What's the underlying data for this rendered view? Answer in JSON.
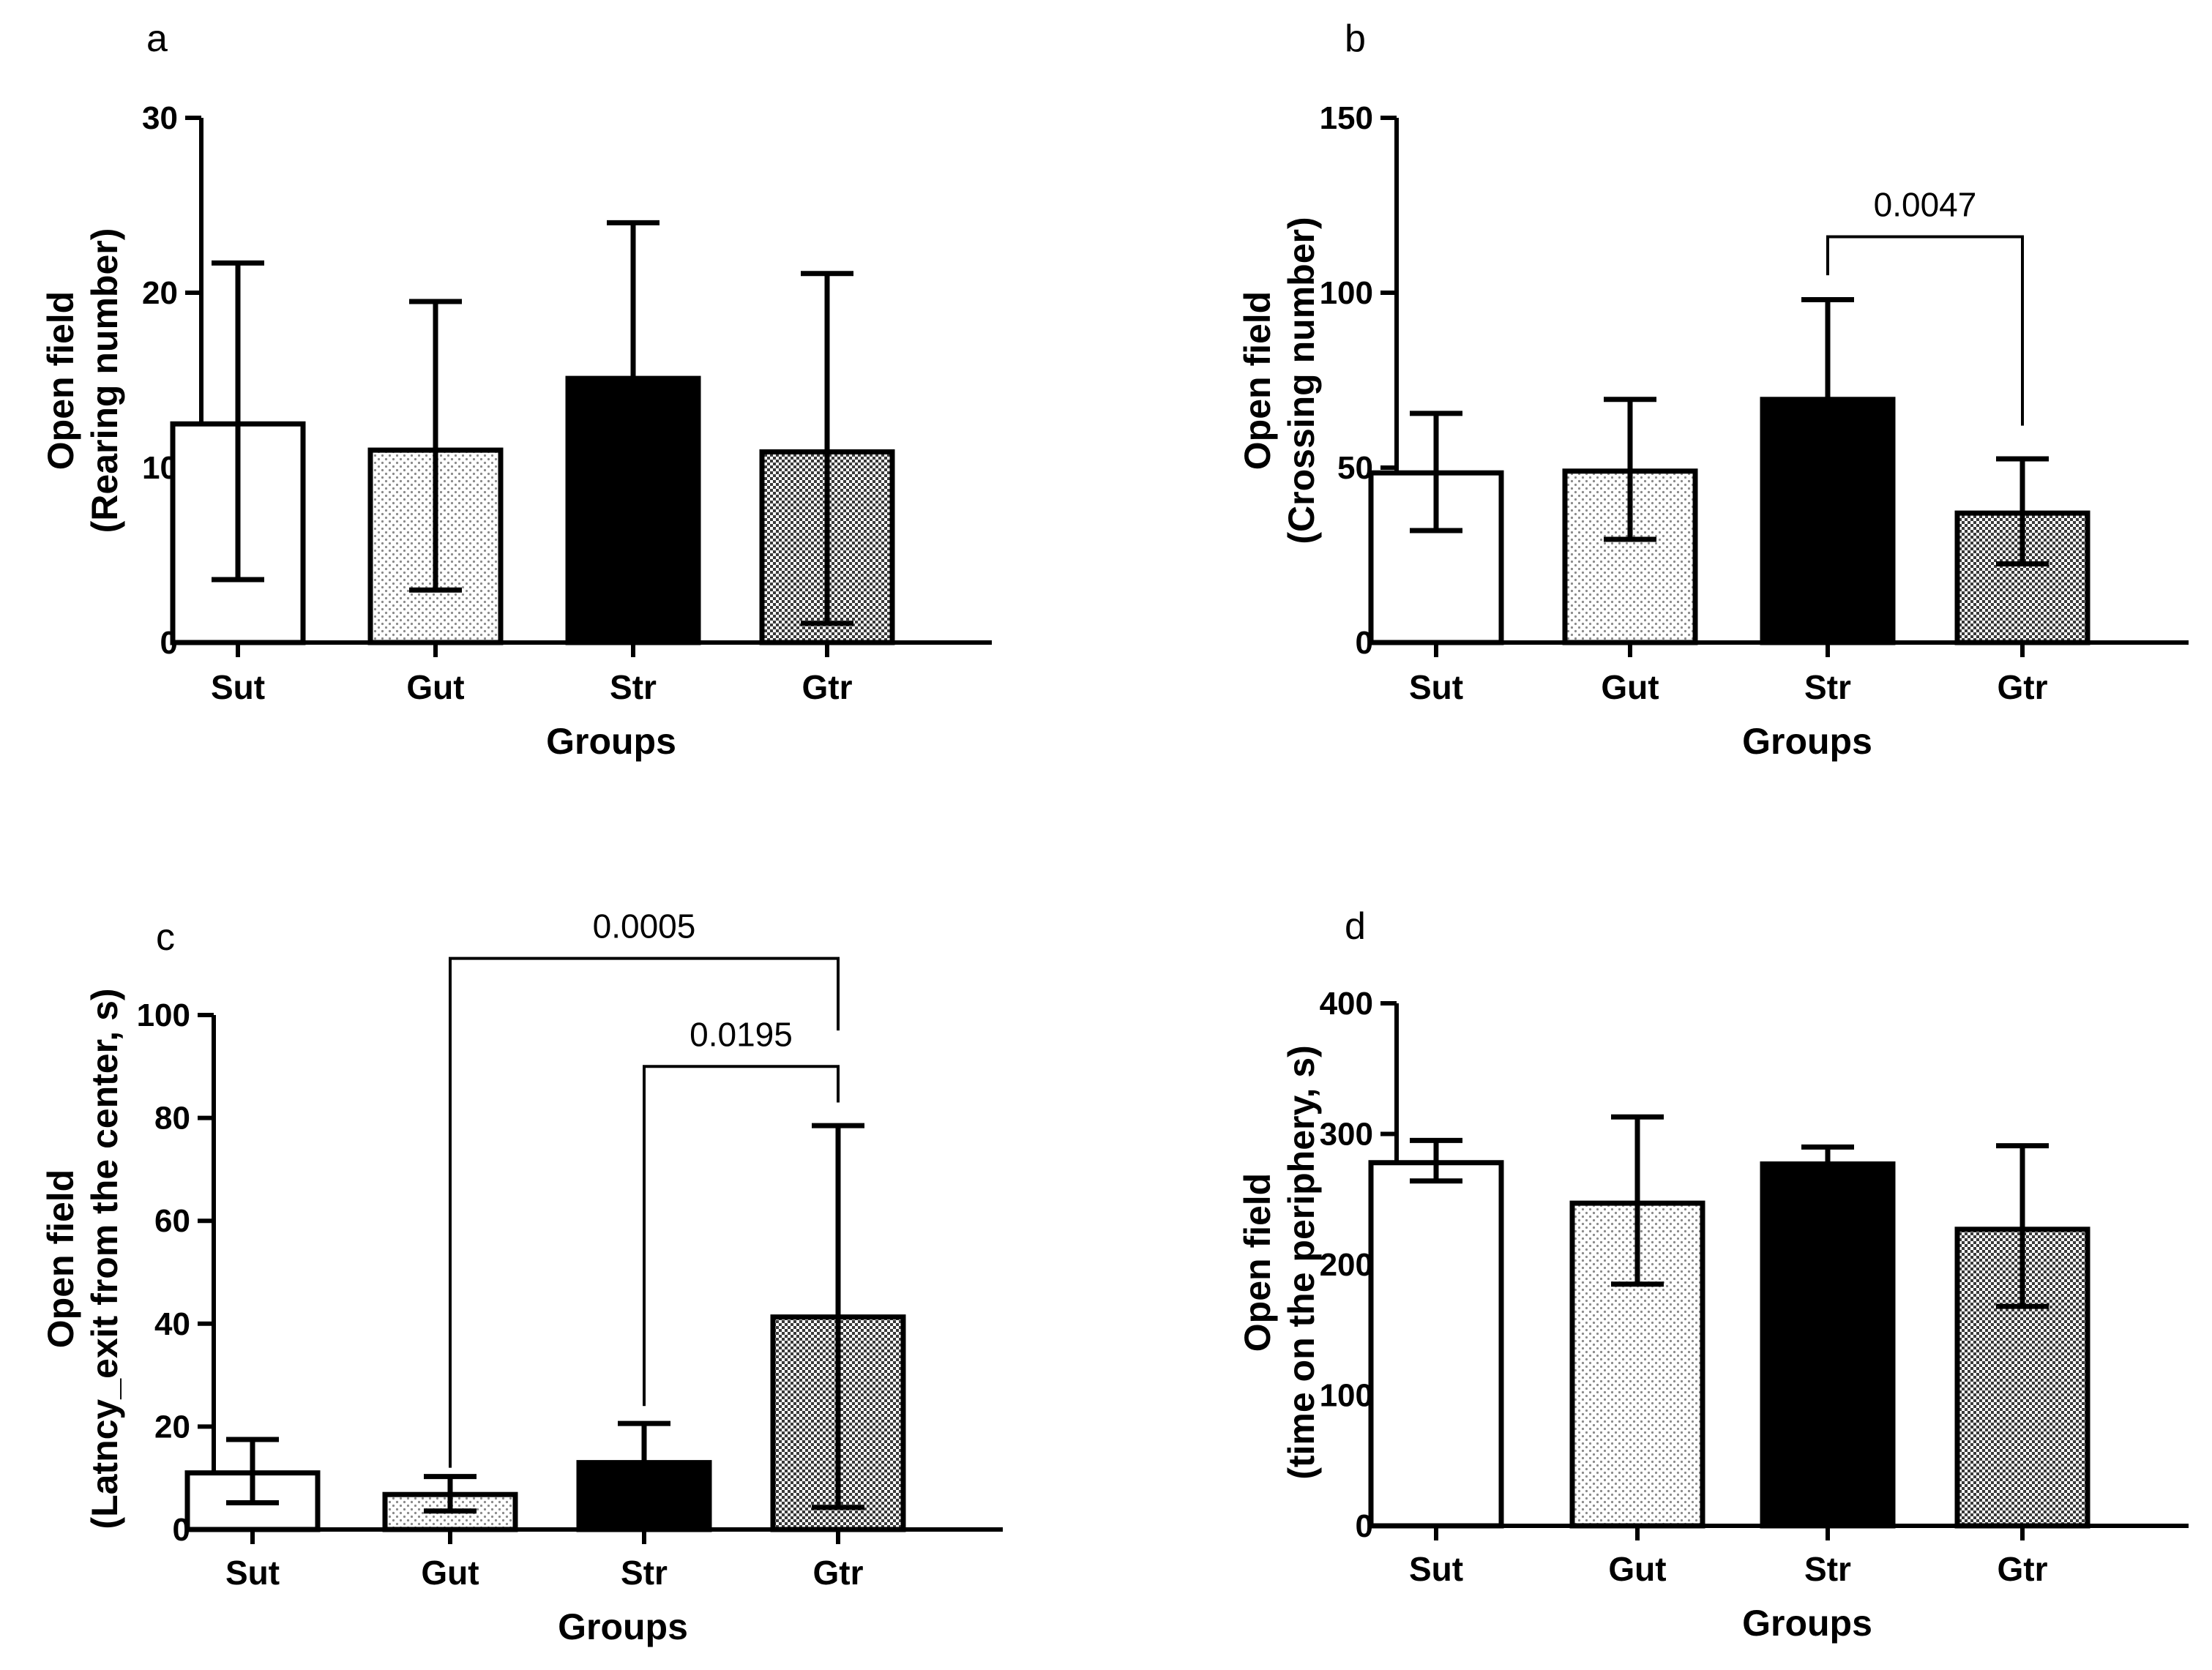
{
  "chart_data": [
    {
      "panel": "a",
      "type": "bar",
      "categories": [
        "Sut",
        "Gut",
        "Str",
        "Gtr"
      ],
      "values": [
        12.5,
        11.0,
        15.1,
        10.9
      ],
      "error_upper": [
        21.7,
        19.5,
        24.0,
        21.1
      ],
      "error_lower": [
        3.6,
        3.0,
        15.1,
        1.1
      ],
      "patterns": [
        "white",
        "dots",
        "black",
        "check"
      ],
      "yticks": [
        0,
        10,
        20,
        30
      ],
      "ylim": [
        0,
        30
      ],
      "xlabel": "Groups",
      "ylabel_lines": [
        "Open field",
        "(Rearing number)"
      ],
      "significance": []
    },
    {
      "panel": "b",
      "type": "bar",
      "categories": [
        "Sut",
        "Gut",
        "Str",
        "Gtr"
      ],
      "values": [
        48.5,
        49.0,
        69.5,
        37.0
      ],
      "error_upper": [
        65.5,
        69.5,
        98.0,
        52.5
      ],
      "error_lower": [
        32.0,
        29.5,
        69.5,
        22.5
      ],
      "patterns": [
        "white",
        "dots",
        "black",
        "check"
      ],
      "yticks": [
        0,
        50,
        100,
        150
      ],
      "ylim": [
        0,
        150
      ],
      "xlabel": "Groups",
      "ylabel_lines": [
        "Open field",
        "(Crossing number)"
      ],
      "significance": [
        {
          "from": 2,
          "to": 3,
          "label": "0.0047",
          "bracket_y": 116,
          "left_end": 105,
          "right_end": 62
        }
      ]
    },
    {
      "panel": "c",
      "type": "bar",
      "categories": [
        "Sut",
        "Gut",
        "Str",
        "Gtr"
      ],
      "values": [
        11.0,
        6.8,
        13.0,
        41.3
      ],
      "error_upper": [
        17.5,
        10.3,
        20.6,
        78.5
      ],
      "error_lower": [
        5.2,
        3.6,
        13.0,
        4.3
      ],
      "patterns": [
        "white",
        "dots",
        "black",
        "check"
      ],
      "yticks": [
        0,
        20,
        40,
        60,
        80,
        100
      ],
      "ylim": [
        0,
        100
      ],
      "xlabel": "Groups",
      "ylabel_lines": [
        "Open field",
        "(Latncy_exit from the center, s)"
      ],
      "significance": [
        {
          "from": 1,
          "to": 3,
          "label": "0.0005",
          "bracket_y": 111,
          "left_end": 12,
          "right_end": 97
        },
        {
          "from": 2,
          "to": 3,
          "label": "0.0195",
          "bracket_y": 90,
          "left_end": 24,
          "right_end": 83
        }
      ]
    },
    {
      "panel": "d",
      "type": "bar",
      "categories": [
        "Sut",
        "Gut",
        "Str",
        "Gtr"
      ],
      "values": [
        278,
        247,
        277,
        227
      ],
      "error_upper": [
        295,
        313,
        290,
        291
      ],
      "error_lower": [
        264,
        185,
        277,
        168
      ],
      "patterns": [
        "white",
        "dots",
        "black",
        "check"
      ],
      "yticks": [
        0,
        100,
        200,
        300,
        400
      ],
      "ylim": [
        0,
        400
      ],
      "xlabel": "Groups",
      "ylabel_lines": [
        "Open field",
        "(time on the periphery, s)"
      ],
      "significance": []
    }
  ],
  "colors": {
    "ink": "#000000",
    "background": "#ffffff",
    "dots": "#9a9a9a",
    "check": "#6a6a6a"
  }
}
